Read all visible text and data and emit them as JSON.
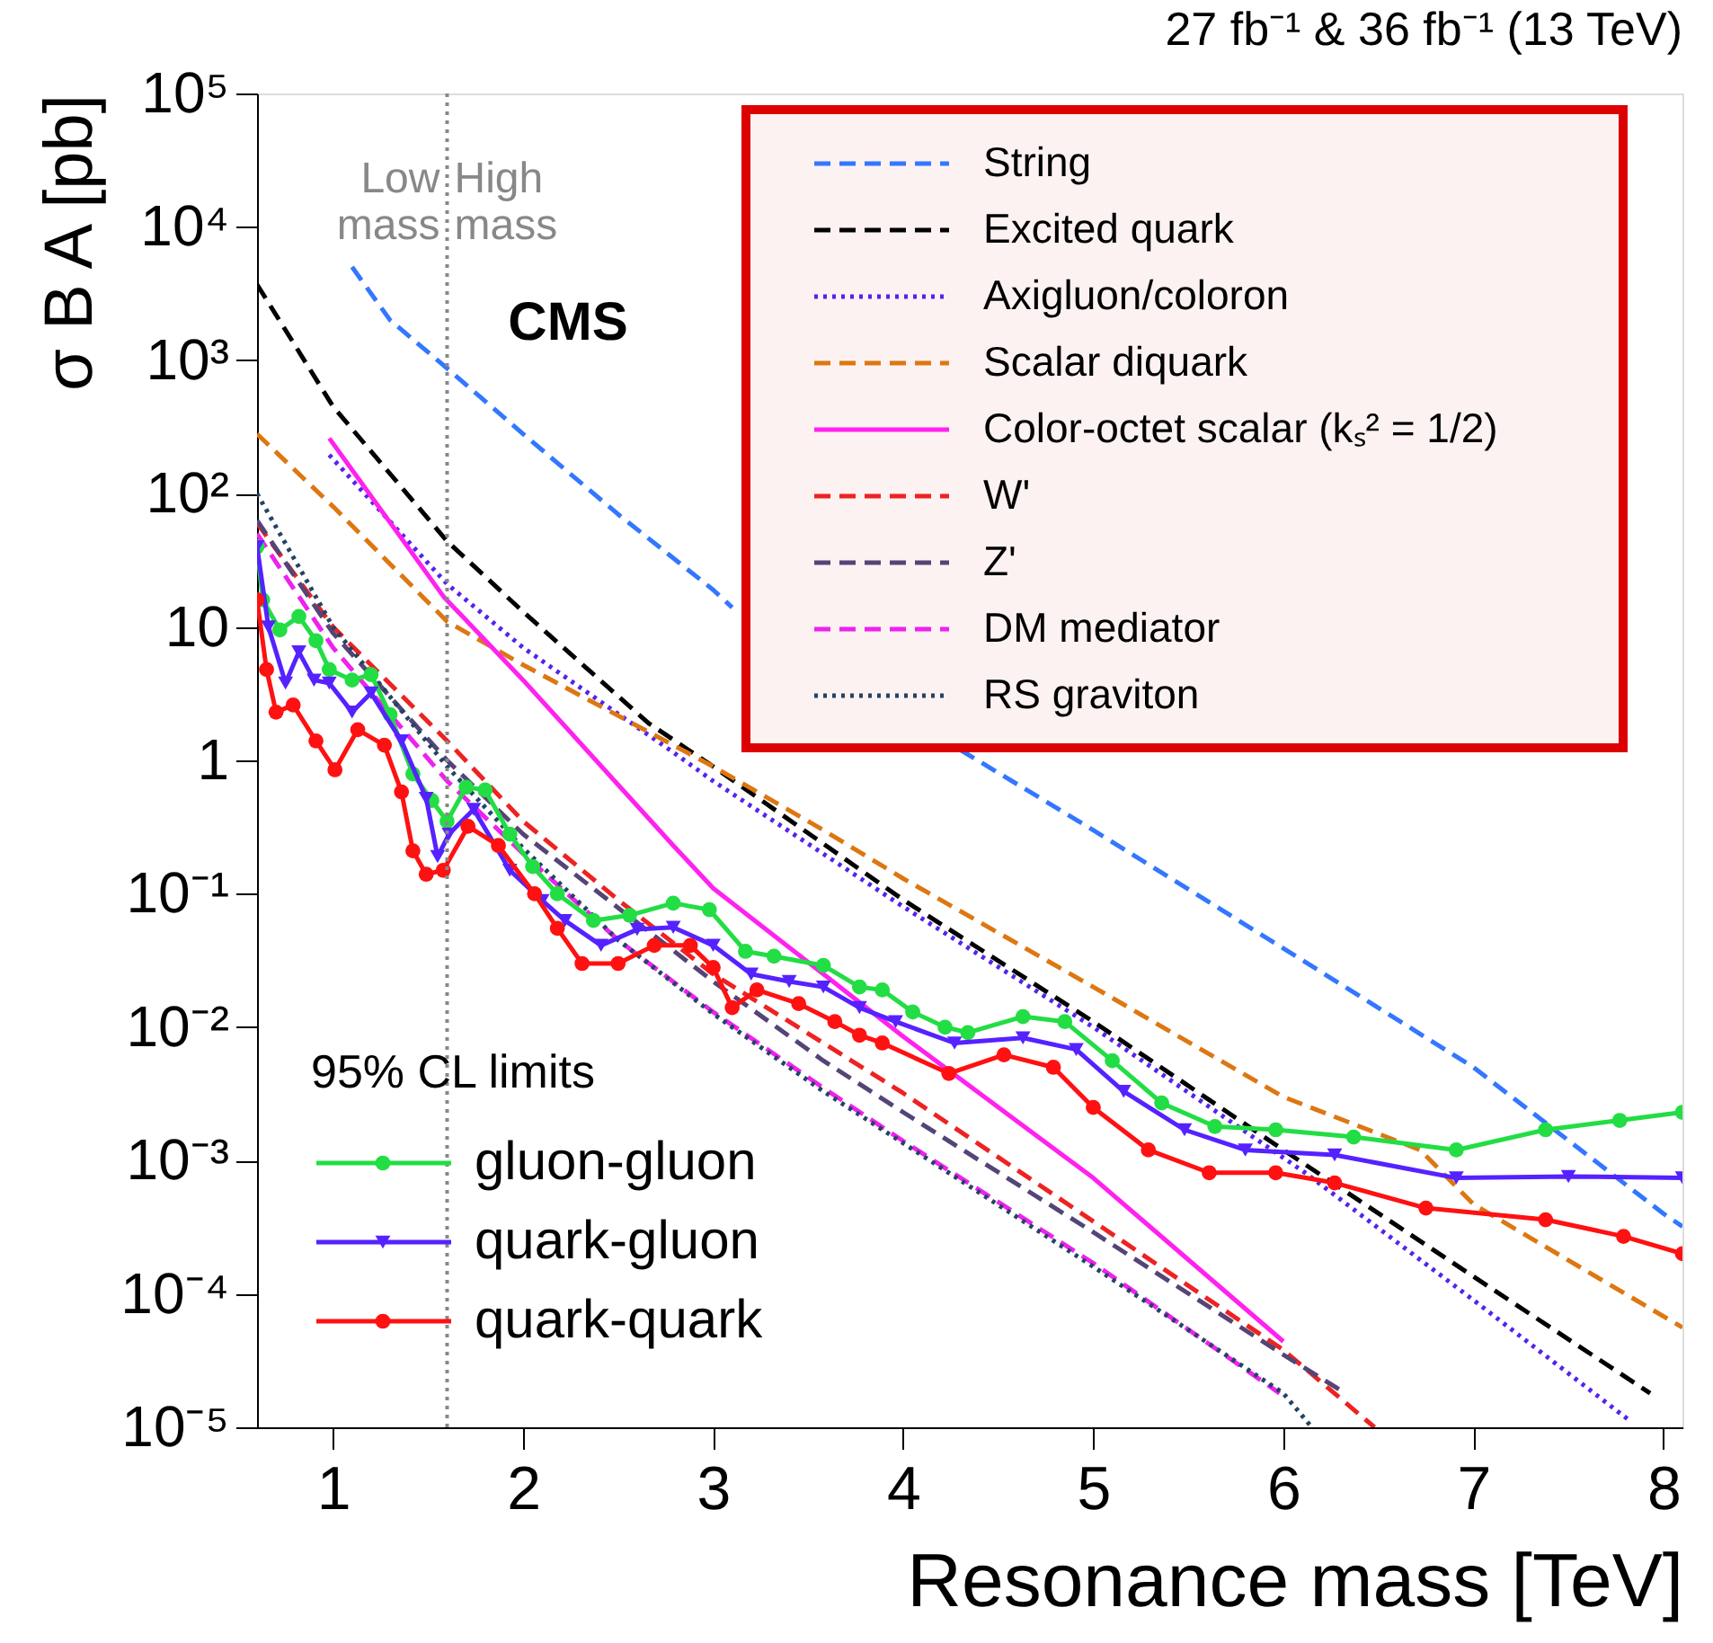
{
  "chart_data": {
    "type": "line",
    "title": "27 fb⁻¹ & 36 fb⁻¹ (13 TeV)",
    "xlabel": "Resonance mass [TeV]",
    "ylabel": "σ B A [pb]",
    "legend_title": "95% CL limits",
    "legend": "top right",
    "log": true,
    "xlim": [
      0.6,
      8.1
    ],
    "xticks": [
      1,
      2,
      3,
      4,
      5,
      6,
      7,
      8
    ],
    "ylim": [
      1e-05,
      100000.0
    ],
    "yticks": [
      {
        "value": 1e-05,
        "label": "10⁻⁵"
      },
      {
        "value": 0.0001,
        "label": "10⁻⁴"
      },
      {
        "value": 0.001,
        "label": "10⁻³"
      },
      {
        "value": 0.01,
        "label": "10⁻²"
      },
      {
        "value": 0.1,
        "label": "10⁻¹"
      },
      1,
      10,
      {
        "value": 100,
        "label": "10²"
      },
      {
        "value": 1000,
        "label": "10³"
      },
      {
        "value": 10000,
        "label": "10⁴"
      },
      {
        "value": 100000,
        "label": "10⁵"
      }
    ],
    "annotations": [
      "CMS",
      "Low mass",
      "High mass"
    ],
    "ref_lines": [
      {
        "axis": "x",
        "value": 1.6,
        "color": "#888888",
        "line_style": "dotted"
      }
    ],
    "series": [
      {
        "name": "String",
        "color": "#3377ff",
        "line_style": "dashed",
        "x": [
          1.1,
          1.3,
          1.6,
          2,
          2.5,
          3,
          3.1,
          3.5,
          4,
          4.3,
          5,
          6,
          7,
          8,
          8.1
        ],
        "values": [
          5000,
          2000,
          870,
          280,
          70,
          19,
          14,
          null,
          null,
          1.2,
          0.3,
          0.039,
          0.005,
          0.0004,
          0.00032
        ]
      },
      {
        "name": "Excited quark",
        "color": "#000000",
        "line_style": "dashed",
        "x": [
          0.6,
          1.0,
          1.6,
          2,
          2.66,
          3,
          4,
          5,
          6,
          7,
          7.93
        ],
        "values": [
          3700,
          450,
          44,
          13,
          1.9,
          0.9,
          0.09,
          0.011,
          0.0012,
          0.000135,
          1.8e-05
        ]
      },
      {
        "name": "Axigluon/coloron",
        "color": "#5522ee",
        "line_style": "dotted",
        "x": [
          0.98,
          1.6,
          2,
          2.79,
          3,
          4,
          5,
          6.12,
          7,
          7.83
        ],
        "values": [
          195,
          21,
          7,
          1.15,
          0.7,
          0.08,
          0.01,
          0.0008,
          9e-05,
          1.1e-05
        ]
      },
      {
        "name": "Scalar diquark",
        "color": "#dd7711",
        "line_style": "dashed",
        "x": [
          0.6,
          1.0,
          1.6,
          2,
          3,
          3.58,
          4,
          5,
          6,
          6.72,
          7,
          8.1
        ],
        "values": [
          280,
          80,
          11,
          5.2,
          0.9,
          0.3,
          0.13,
          0.02,
          0.003,
          0.0012,
          0.00047,
          5.6e-05
        ]
      },
      {
        "name": "Color-octet scalar (kₛ² = 1/2)",
        "color": "#ff22ee",
        "line_style": "solid",
        "x": [
          0.98,
          1.58,
          2,
          2.79,
          3,
          3.58,
          4,
          5,
          6
        ],
        "values": [
          260,
          17,
          4,
          0.23,
          0.11,
          0.025,
          0.0085,
          0.00074,
          4.4e-05
        ]
      },
      {
        "name": "W'",
        "color": "#ee2222",
        "line_style": "dashed",
        "x": [
          0.6,
          1,
          1.6,
          2,
          2.5,
          3,
          3.58,
          4,
          5,
          6,
          6.48
        ],
        "values": [
          60,
          10,
          1.4,
          0.35,
          0.09,
          0.025,
          0.0076,
          0.0032,
          0.00035,
          3.8e-05,
          1e-05
        ]
      },
      {
        "name": "Z'",
        "color": "#554477",
        "line_style": "dashed",
        "x": [
          0.6,
          1,
          1.6,
          2,
          3,
          3.58,
          4,
          5,
          6,
          6.3
        ],
        "values": [
          63,
          9,
          1,
          0.28,
          0.022,
          0.0056,
          0.0023,
          0.00029,
          3.5e-05,
          1.9e-05
        ]
      },
      {
        "name": "DM mediator",
        "color": "#ee22ee",
        "line_style": "dashed",
        "x": [
          0.6,
          1,
          1.6,
          2,
          2.5,
          3,
          3.58,
          4,
          5,
          5.98
        ],
        "values": [
          50,
          7,
          0.7,
          0.2,
          0.045,
          0.013,
          0.0035,
          0.0014,
          0.00017,
          1.8e-05
        ]
      },
      {
        "name": "RS graviton",
        "color": "#224466",
        "line_style": "dotted",
        "x": [
          0.6,
          1,
          1.6,
          2,
          2.5,
          3,
          3.58,
          4,
          5,
          6,
          6.15
        ],
        "values": [
          100,
          10,
          0.9,
          0.22,
          0.045,
          0.0126,
          0.0033,
          0.00135,
          0.00016,
          1.8e-05,
          1e-05
        ]
      },
      {
        "name": "gluon-gluon",
        "color": "#22dd44",
        "line_style": "solid",
        "marker": "circle",
        "x": [
          0.6,
          0.63,
          0.72,
          0.82,
          0.91,
          0.98,
          1.1,
          1.2,
          1.3,
          1.42,
          1.52,
          1.6,
          1.7,
          1.8,
          1.93,
          2.05,
          2.18,
          2.37,
          2.56,
          2.79,
          2.98,
          3.17,
          3.32,
          3.58,
          3.77,
          3.89,
          4.05,
          4.22,
          4.34,
          4.63,
          4.85,
          5.1,
          5.36,
          5.64,
          5.96,
          6.37,
          6.91,
          7.38,
          7.77,
          8.1
        ],
        "values": [
          40,
          16,
          9.5,
          12,
          7.9,
          4.8,
          4.0,
          4.4,
          2.2,
          0.79,
          0.5,
          0.35,
          0.63,
          0.6,
          0.28,
          0.16,
          0.1,
          0.063,
          0.069,
          0.085,
          0.076,
          0.037,
          0.034,
          0.029,
          0.02,
          0.019,
          0.013,
          0.01,
          0.0091,
          0.012,
          0.011,
          0.0056,
          0.0027,
          0.0018,
          0.0017,
          0.0015,
          0.0012,
          0.0017,
          0.002,
          0.0023
        ]
      },
      {
        "name": "quark-gluon",
        "color": "#5522ff",
        "line_style": "solid",
        "marker": "triangle",
        "x": [
          0.6,
          0.66,
          0.75,
          0.82,
          0.9,
          0.98,
          1.1,
          1.2,
          1.36,
          1.49,
          1.55,
          1.61,
          1.74,
          1.93,
          2.1,
          2.22,
          2.41,
          2.6,
          2.79,
          3.0,
          3.2,
          3.4,
          3.58,
          3.77,
          3.96,
          4.27,
          4.63,
          4.91,
          5.16,
          5.48,
          5.8,
          6.27,
          6.91,
          7.5,
          8.1
        ],
        "values": [
          40,
          10,
          3.8,
          6.5,
          4,
          3.8,
          2.3,
          3.2,
          1.4,
          0.52,
          0.19,
          0.28,
          0.43,
          0.15,
          0.089,
          0.063,
          0.041,
          0.054,
          0.056,
          0.041,
          0.025,
          0.022,
          0.02,
          0.014,
          0.011,
          0.0076,
          0.0083,
          0.0068,
          0.0033,
          0.0017,
          0.0012,
          0.0011,
          0.00074,
          0.00076,
          0.00074
        ]
      },
      {
        "name": "quark-quark",
        "color": "#ff1111",
        "line_style": "solid",
        "marker": "circle",
        "x": [
          0.6,
          0.65,
          0.7,
          0.79,
          0.91,
          1.01,
          1.13,
          1.27,
          1.36,
          1.42,
          1.49,
          1.58,
          1.71,
          1.87,
          2.06,
          2.18,
          2.31,
          2.5,
          2.69,
          2.88,
          3.0,
          3.1,
          3.23,
          3.45,
          3.64,
          3.77,
          3.89,
          4.24,
          4.53,
          4.79,
          5.0,
          5.29,
          5.61,
          5.96,
          6.27,
          6.75,
          7.38,
          7.79,
          8.1
        ],
        "values": [
          16,
          4.8,
          2.3,
          2.6,
          1.4,
          0.85,
          1.7,
          1.3,
          0.58,
          0.21,
          0.14,
          0.15,
          0.32,
          0.23,
          0.1,
          0.055,
          0.03,
          0.03,
          0.041,
          0.041,
          0.028,
          0.014,
          0.019,
          0.015,
          0.011,
          0.0087,
          0.0076,
          0.0045,
          0.0062,
          0.005,
          0.0025,
          0.0012,
          0.00081,
          0.00081,
          0.00068,
          0.00044,
          0.00036,
          0.00027,
          0.0002
        ]
      }
    ]
  }
}
